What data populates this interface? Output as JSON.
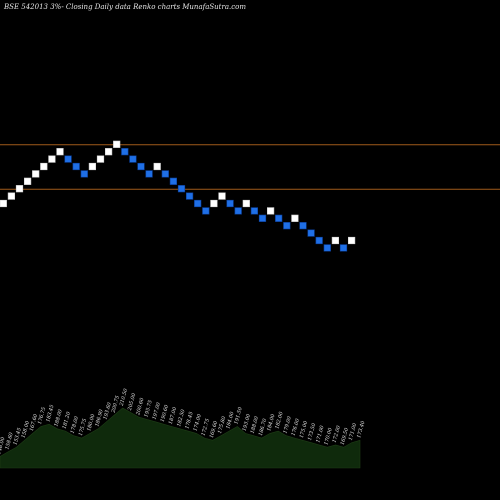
{
  "title": "BSE 542013 3%-  Closing Daily data  Renko  charts MunafaSutra.com",
  "colors": {
    "background": "#000000",
    "up_brick": "#ffffff",
    "down_brick": "#1f6fe6",
    "down_brick_border": "#0b3f9a",
    "level_line": "#a05a1a",
    "volume_fill": "#0f2a0c",
    "volume_line": "#1e3d16"
  },
  "chart_data": [
    {
      "type": "renko",
      "title": "BSE 542013 3%-  Closing Daily data  Renko  charts MunafaSutra.com",
      "brick_step": 1,
      "bricks": [
        {
          "dir": "up",
          "level": 0
        },
        {
          "dir": "up",
          "level": 1
        },
        {
          "dir": "up",
          "level": 2
        },
        {
          "dir": "up",
          "level": 3
        },
        {
          "dir": "up",
          "level": 4
        },
        {
          "dir": "up",
          "level": 5
        },
        {
          "dir": "up",
          "level": 6
        },
        {
          "dir": "up",
          "level": 7
        },
        {
          "dir": "down",
          "level": 6
        },
        {
          "dir": "down",
          "level": 5
        },
        {
          "dir": "down",
          "level": 4
        },
        {
          "dir": "up",
          "level": 5
        },
        {
          "dir": "up",
          "level": 6
        },
        {
          "dir": "up",
          "level": 7
        },
        {
          "dir": "up",
          "level": 8
        },
        {
          "dir": "down",
          "level": 7
        },
        {
          "dir": "down",
          "level": 6
        },
        {
          "dir": "down",
          "level": 5
        },
        {
          "dir": "down",
          "level": 4
        },
        {
          "dir": "up",
          "level": 5
        },
        {
          "dir": "down",
          "level": 4
        },
        {
          "dir": "down",
          "level": 3
        },
        {
          "dir": "down",
          "level": 2
        },
        {
          "dir": "down",
          "level": 1
        },
        {
          "dir": "down",
          "level": 0
        },
        {
          "dir": "down",
          "level": -1
        },
        {
          "dir": "up",
          "level": 0
        },
        {
          "dir": "up",
          "level": 1
        },
        {
          "dir": "down",
          "level": 0
        },
        {
          "dir": "down",
          "level": -1
        },
        {
          "dir": "up",
          "level": 0
        },
        {
          "dir": "down",
          "level": -1
        },
        {
          "dir": "down",
          "level": -2
        },
        {
          "dir": "up",
          "level": -1
        },
        {
          "dir": "down",
          "level": -2
        },
        {
          "dir": "down",
          "level": -3
        },
        {
          "dir": "up",
          "level": -2
        },
        {
          "dir": "down",
          "level": -3
        },
        {
          "dir": "down",
          "level": -4
        },
        {
          "dir": "down",
          "level": -5
        },
        {
          "dir": "down",
          "level": -6
        },
        {
          "dir": "up",
          "level": -5
        },
        {
          "dir": "down",
          "level": -6
        },
        {
          "dir": "up",
          "level": -5
        }
      ],
      "levels": [
        8,
        2
      ],
      "volume": {
        "values": [
          10,
          14,
          18,
          24,
          30,
          36,
          38,
          34,
          32,
          28,
          26,
          30,
          34,
          40,
          46,
          52,
          48,
          44,
          42,
          40,
          38,
          36,
          34,
          32,
          30,
          26,
          24,
          28,
          32,
          36,
          30,
          28,
          26,
          30,
          32,
          28,
          26,
          24,
          22,
          20,
          18,
          20,
          18,
          22,
          24
        ],
        "labels": [
          "148.00",
          "158.60",
          "153.45",
          "158.00",
          "167.60",
          "176.75",
          "183.45",
          "188.00",
          "181.20",
          "178.00",
          "175.75",
          "180.00",
          "186.90",
          "193.60",
          "200.75",
          "210.50",
          "205.00",
          "200.60",
          "195.75",
          "197.00",
          "190.60",
          "187.00",
          "182.50",
          "178.45",
          "174.00",
          "172.75",
          "169.60",
          "175.80",
          "184.00",
          "191.50",
          "193.00",
          "188.00",
          "186.70",
          "184.00",
          "182.00",
          "179.00",
          "176.00",
          "175.00",
          "173.50",
          "171.00",
          "170.00",
          "172.00",
          "169.50",
          "171.00",
          "173.40"
        ]
      }
    }
  ]
}
